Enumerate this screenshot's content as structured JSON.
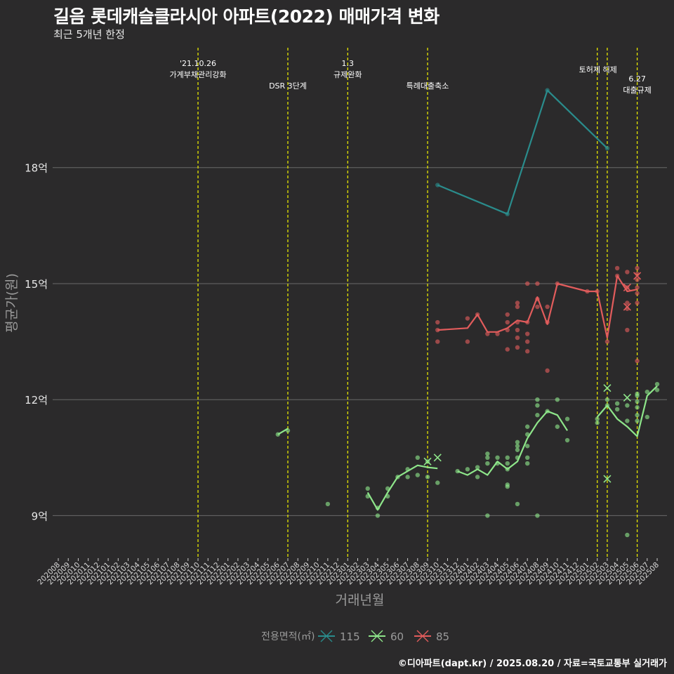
{
  "title": "길음 롯데캐슬클라시아 아파트(2022) 매매가격 변화",
  "subtitle": "최근 5개년 한정",
  "caption": "©디아파트(dapt.kr) / 2025.08.20 / 자료=국토교통부 실거래가",
  "chart_data": {
    "type": "line",
    "title": "길음 롯데캐슬클라시아 아파트(2022) 매매가격 변화",
    "subtitle": "최근 5개년 한정",
    "xlabel": "거래년월",
    "ylabel": "평균가(원)",
    "ylim": [
      7.9,
      21.1
    ],
    "yticks": [
      9,
      12,
      15,
      18
    ],
    "ytick_labels": [
      "9억",
      "12억",
      "15억",
      "18억"
    ],
    "grid": true,
    "legend_title": "전용면적(㎡)",
    "legend_position": "bottom",
    "categories": [
      "202008",
      "202009",
      "202010",
      "202011",
      "202012",
      "202101",
      "202102",
      "202103",
      "202104",
      "202105",
      "202106",
      "202107",
      "202108",
      "202109",
      "202110",
      "202111",
      "202112",
      "202201",
      "202202",
      "202203",
      "202204",
      "202205",
      "202206",
      "202207",
      "202208",
      "202209",
      "202210",
      "202211",
      "202212",
      "202301",
      "202302",
      "202303",
      "202304",
      "202305",
      "202306",
      "202307",
      "202308",
      "202309",
      "202310",
      "202311",
      "202312",
      "202401",
      "202402",
      "202403",
      "202404",
      "202405",
      "202406",
      "202407",
      "202408",
      "202409",
      "202410",
      "202411",
      "202412",
      "202501",
      "202502",
      "202503",
      "202504",
      "202505",
      "202506",
      "202507",
      "202508"
    ],
    "events": [
      {
        "month": "202110",
        "label": "'21.10.26\n가계부채관리강화"
      },
      {
        "month": "202207",
        "label": "DSR 3단계"
      },
      {
        "month": "202301",
        "label": "1.3\n규제완화"
      },
      {
        "month": "202309",
        "label": "특례대출축소"
      },
      {
        "month": "202502",
        "label": "토허제 해제"
      },
      {
        "month": "202503",
        "label": ""
      },
      {
        "month": "202506",
        "label": "6.27\n대출규제"
      }
    ],
    "series": [
      {
        "name": "115",
        "color": "#2a8c8c",
        "line": [
          [
            "202310",
            17.55
          ],
          [
            "202405",
            16.8
          ],
          [
            "202409",
            20.0
          ],
          [
            "202503",
            18.5
          ]
        ],
        "points": [
          [
            "202310",
            17.55
          ],
          [
            "202405",
            16.8
          ],
          [
            "202409",
            20.0
          ],
          [
            "202503",
            18.5
          ]
        ],
        "cancelled": []
      },
      {
        "name": "60",
        "color": "#8ee68a",
        "line": [
          [
            "202206",
            11.1
          ],
          [
            "202207",
            11.25
          ],
          null,
          [
            "202303",
            9.6
          ],
          [
            "202304",
            9.15
          ],
          [
            "202305",
            9.6
          ],
          [
            "202306",
            10.0
          ],
          [
            "202307",
            10.15
          ],
          [
            "202308",
            10.3
          ],
          [
            "202309",
            10.25
          ],
          [
            "202310",
            10.22
          ],
          null,
          [
            "202312",
            10.15
          ],
          [
            "202401",
            10.05
          ],
          [
            "202402",
            10.2
          ],
          [
            "202403",
            10.05
          ],
          [
            "202404",
            10.4
          ],
          [
            "202405",
            10.2
          ],
          [
            "202406",
            10.4
          ],
          [
            "202407",
            11.0
          ],
          [
            "202408",
            11.4
          ],
          [
            "202409",
            11.7
          ],
          [
            "202410",
            11.6
          ],
          [
            "202411",
            11.2
          ],
          null,
          [
            "202502",
            11.55
          ],
          [
            "202503",
            11.85
          ],
          [
            "202504",
            11.5
          ],
          [
            "202505",
            11.3
          ],
          [
            "202506",
            11.05
          ],
          [
            "202507",
            12.1
          ],
          [
            "202508",
            12.35
          ]
        ],
        "points": [
          [
            "202206",
            11.1
          ],
          [
            "202207",
            11.2
          ],
          [
            "202211",
            9.3
          ],
          [
            "202303",
            9.7
          ],
          [
            "202303",
            9.5
          ],
          [
            "202304",
            9.2
          ],
          [
            "202304",
            9.0
          ],
          [
            "202305",
            9.7
          ],
          [
            "202305",
            9.5
          ],
          [
            "202306",
            10.0
          ],
          [
            "202307",
            10.2
          ],
          [
            "202307",
            10.0
          ],
          [
            "202308",
            10.5
          ],
          [
            "202308",
            10.05
          ],
          [
            "202309",
            10.0
          ],
          [
            "202309",
            10.4
          ],
          [
            "202310",
            9.85
          ],
          [
            "202312",
            10.15
          ],
          [
            "202401",
            10.2
          ],
          [
            "202402",
            10.25
          ],
          [
            "202402",
            10.0
          ],
          [
            "202403",
            10.6
          ],
          [
            "202403",
            10.5
          ],
          [
            "202403",
            10.35
          ],
          [
            "202403",
            9.0
          ],
          [
            "202404",
            10.5
          ],
          [
            "202404",
            10.35
          ],
          [
            "202405",
            10.5
          ],
          [
            "202405",
            10.35
          ],
          [
            "202405",
            10.2
          ],
          [
            "202405",
            9.8
          ],
          [
            "202405",
            9.75
          ],
          [
            "202406",
            10.9
          ],
          [
            "202406",
            10.8
          ],
          [
            "202406",
            10.7
          ],
          [
            "202406",
            10.5
          ],
          [
            "202406",
            9.3
          ],
          [
            "202407",
            11.3
          ],
          [
            "202407",
            11.1
          ],
          [
            "202407",
            10.8
          ],
          [
            "202407",
            10.5
          ],
          [
            "202407",
            10.35
          ],
          [
            "202408",
            12.0
          ],
          [
            "202408",
            11.85
          ],
          [
            "202408",
            11.6
          ],
          [
            "202408",
            9.0
          ],
          [
            "202409",
            11.7
          ],
          [
            "202410",
            12.0
          ],
          [
            "202410",
            11.3
          ],
          [
            "202411",
            11.5
          ],
          [
            "202411",
            10.95
          ],
          [
            "202502",
            11.5
          ],
          [
            "202502",
            11.4
          ],
          [
            "202503",
            12.0
          ],
          [
            "202503",
            11.85
          ],
          [
            "202504",
            11.9
          ],
          [
            "202504",
            11.75
          ],
          [
            "202505",
            11.85
          ],
          [
            "202505",
            11.45
          ],
          [
            "202505",
            8.5
          ],
          [
            "202506",
            12.1
          ],
          [
            "202506",
            11.95
          ],
          [
            "202506",
            11.8
          ],
          [
            "202506",
            11.6
          ],
          [
            "202506",
            11.45
          ],
          [
            "202506",
            12.15
          ],
          [
            "202507",
            12.2
          ],
          [
            "202507",
            11.55
          ],
          [
            "202508",
            12.4
          ],
          [
            "202508",
            12.25
          ]
        ],
        "cancelled": [
          [
            "202309",
            10.4
          ],
          [
            "202310",
            10.5
          ],
          [
            "202503",
            12.3
          ],
          [
            "202503",
            9.95
          ],
          [
            "202505",
            12.05
          ]
        ]
      },
      {
        "name": "85",
        "color": "#e25c5c",
        "line": [
          [
            "202310",
            13.8
          ],
          [
            "202401",
            13.85
          ],
          [
            "202402",
            14.2
          ],
          [
            "202403",
            13.75
          ],
          [
            "202404",
            13.75
          ],
          [
            "202405",
            13.85
          ],
          [
            "202406",
            14.05
          ],
          [
            "202407",
            14.0
          ],
          [
            "202408",
            14.65
          ],
          [
            "202409",
            13.95
          ],
          [
            "202410",
            15.0
          ],
          [
            "202501",
            14.8
          ],
          [
            "202502",
            14.8
          ],
          [
            "202503",
            13.6
          ],
          [
            "202504",
            15.2
          ],
          [
            "202505",
            14.8
          ],
          [
            "202506",
            14.85
          ]
        ],
        "points": [
          [
            "202310",
            14.0
          ],
          [
            "202310",
            13.8
          ],
          [
            "202310",
            13.5
          ],
          [
            "202401",
            14.1
          ],
          [
            "202401",
            13.5
          ],
          [
            "202402",
            14.2
          ],
          [
            "202403",
            13.7
          ],
          [
            "202404",
            13.7
          ],
          [
            "202405",
            14.2
          ],
          [
            "202405",
            14.0
          ],
          [
            "202405",
            13.8
          ],
          [
            "202405",
            13.3
          ],
          [
            "202406",
            14.5
          ],
          [
            "202406",
            14.4
          ],
          [
            "202406",
            14.0
          ],
          [
            "202406",
            13.8
          ],
          [
            "202406",
            13.6
          ],
          [
            "202406",
            13.35
          ],
          [
            "202407",
            15.0
          ],
          [
            "202407",
            14.0
          ],
          [
            "202407",
            13.7
          ],
          [
            "202407",
            13.5
          ],
          [
            "202407",
            13.25
          ],
          [
            "202408",
            15.0
          ],
          [
            "202408",
            14.6
          ],
          [
            "202408",
            14.4
          ],
          [
            "202409",
            14.4
          ],
          [
            "202409",
            14.0
          ],
          [
            "202409",
            12.75
          ],
          [
            "202410",
            15.0
          ],
          [
            "202501",
            14.8
          ],
          [
            "202502",
            14.8
          ],
          [
            "202503",
            13.5
          ],
          [
            "202504",
            15.4
          ],
          [
            "202504",
            15.2
          ],
          [
            "202505",
            15.3
          ],
          [
            "202505",
            14.9
          ],
          [
            "202505",
            14.5
          ],
          [
            "202505",
            14.35
          ],
          [
            "202505",
            13.8
          ],
          [
            "202506",
            15.4
          ],
          [
            "202506",
            15.25
          ],
          [
            "202506",
            15.1
          ],
          [
            "202506",
            14.9
          ],
          [
            "202506",
            14.75
          ],
          [
            "202506",
            14.5
          ],
          [
            "202506",
            13.0
          ]
        ],
        "cancelled": [
          [
            "202505",
            14.9
          ],
          [
            "202505",
            14.4
          ],
          [
            "202506",
            15.2
          ]
        ]
      }
    ]
  }
}
